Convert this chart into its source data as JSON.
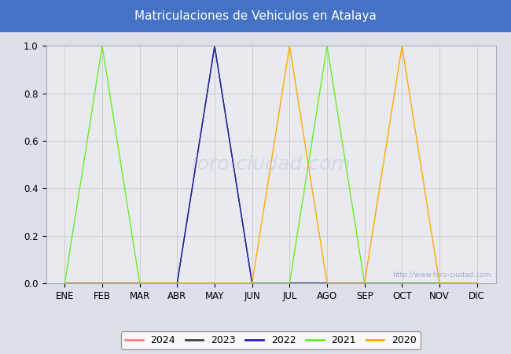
{
  "title": "Matriculaciones de Vehiculos en Atalaya",
  "title_bg_color": "#4472c4",
  "title_text_color": "#ffffff",
  "months": [
    "ENE",
    "FEB",
    "MAR",
    "ABR",
    "MAY",
    "JUN",
    "JUL",
    "AGO",
    "SEP",
    "OCT",
    "NOV",
    "DIC"
  ],
  "month_indices": [
    1,
    2,
    3,
    4,
    5,
    6,
    7,
    8,
    9,
    10,
    11,
    12
  ],
  "ylim": [
    0.0,
    1.0
  ],
  "yticks": [
    0.0,
    0.2,
    0.4,
    0.6,
    0.8,
    1.0
  ],
  "grid_color": "#cccccc",
  "bg_color": "#dde0e8",
  "plot_bg_color": "#e8eaf0",
  "watermark_small": "http://www.foro-ciudad.com",
  "watermark_large": "foro-ciudad.com",
  "series": [
    {
      "year": "2024",
      "color": "#ff8080",
      "data": {
        "1": 0,
        "2": 0,
        "3": 0,
        "4": 0,
        "5": 0,
        "6": 0,
        "7": 0,
        "8": 0,
        "9": 0,
        "10": 0,
        "11": 0,
        "12": 0
      }
    },
    {
      "year": "2023",
      "color": "#404040",
      "data": {
        "1": 0,
        "2": 0,
        "3": 0,
        "4": 0,
        "5": 1,
        "6": 0,
        "7": 0,
        "8": 0,
        "9": 0,
        "10": 0,
        "11": 0,
        "12": 0
      }
    },
    {
      "year": "2022",
      "color": "#2222aa",
      "data": {
        "1": 0,
        "2": 0,
        "3": 0,
        "4": 0,
        "5": 1,
        "6": 0,
        "7": 0,
        "8": 0,
        "9": 0,
        "10": 0,
        "11": 0,
        "12": 0
      }
    },
    {
      "year": "2021",
      "color": "#66ee22",
      "data": {
        "1": 0,
        "2": 1,
        "3": 0,
        "4": 0,
        "5": 0,
        "6": 0,
        "7": 0,
        "8": 1,
        "9": 0,
        "10": 0,
        "11": 0,
        "12": 0
      }
    },
    {
      "year": "2020",
      "color": "#ffaa00",
      "data": {
        "1": 0,
        "2": 0,
        "3": 0,
        "4": 0,
        "5": 0,
        "6": 0,
        "7": 1,
        "8": 0,
        "9": 0,
        "10": 1,
        "11": 0,
        "12": 0
      }
    }
  ],
  "figsize": [
    6.5,
    4.5
  ],
  "dpi": 100
}
